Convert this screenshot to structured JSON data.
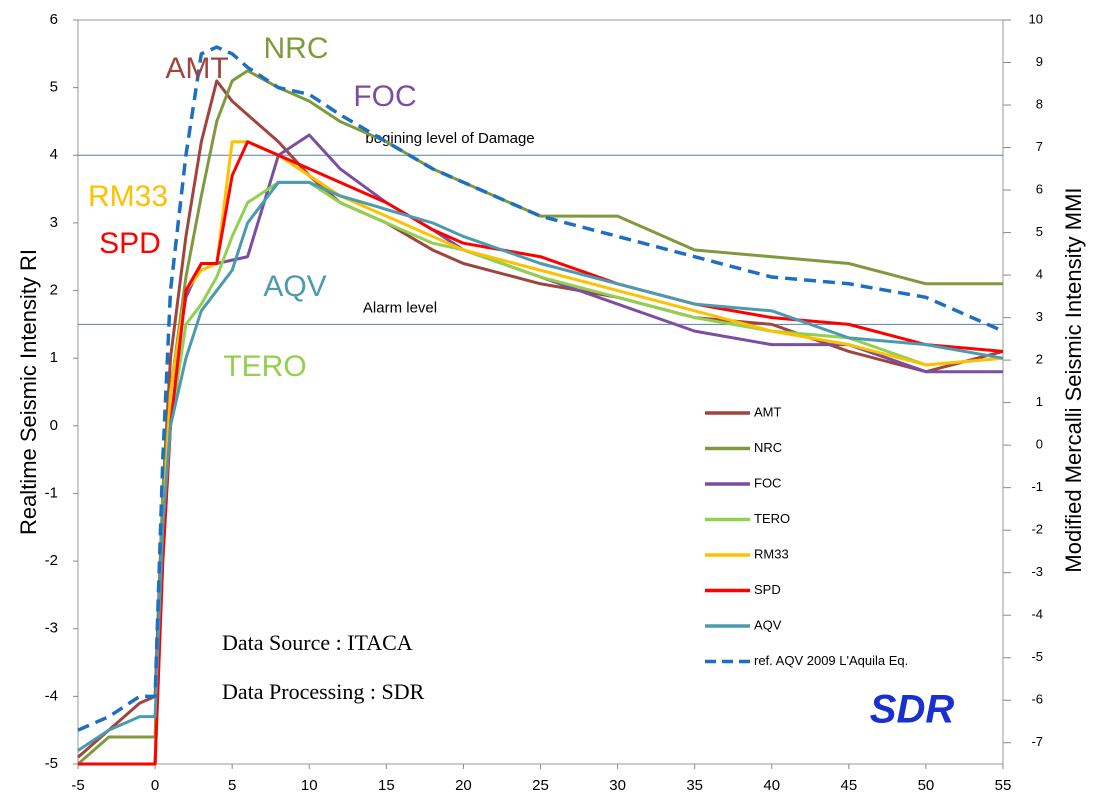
{
  "chart_data": {
    "type": "line",
    "y_label": "Realtime Seismic Intensity RI",
    "y2_label": "Modified Mercalli Seismic Intensity MMI",
    "xlim": [
      -5,
      55
    ],
    "xticks": [
      -5,
      0,
      5,
      10,
      15,
      20,
      25,
      30,
      35,
      40,
      45,
      50,
      55
    ],
    "ylim": [
      -5,
      6
    ],
    "yticks": [
      -5,
      -4,
      -3,
      -2,
      -1,
      0,
      1,
      2,
      3,
      4,
      5,
      6
    ],
    "y2lim": [
      -7.5,
      10
    ],
    "y2ticks": [
      -7,
      -6,
      -5,
      -4,
      -3,
      -2,
      -1,
      0,
      1,
      2,
      3,
      4,
      5,
      6,
      7,
      8,
      9,
      10
    ],
    "hlines": [
      {
        "value": 4,
        "label": "begining level of Damage"
      },
      {
        "value": 1.5,
        "label": "Alarm level"
      }
    ],
    "annotations": [
      "AMT",
      "NRC",
      "FOC",
      "RM33",
      "SPD",
      "AQV",
      "TERO"
    ],
    "notes": [
      "Data Source : ITACA",
      "Data Processing : SDR"
    ],
    "logo": "SDR",
    "x": [
      -5,
      -3,
      -1,
      0,
      0.5,
      1,
      2,
      3,
      4,
      5,
      6,
      8,
      10,
      12,
      15,
      18,
      20,
      25,
      30,
      35,
      40,
      45,
      50,
      55
    ],
    "series": [
      {
        "name": "AMT",
        "color": "#a0453e",
        "values": [
          -4.9,
          -4.5,
          -4.1,
          -4.0,
          -1,
          1.0,
          2.8,
          4.2,
          5.1,
          4.8,
          4.6,
          4.2,
          3.7,
          3.3,
          3.0,
          2.6,
          2.4,
          2.1,
          1.9,
          1.6,
          1.5,
          1.1,
          0.8,
          1.1
        ]
      },
      {
        "name": "NRC",
        "color": "#7f9a3c",
        "values": [
          -5,
          -4.6,
          -4.6,
          -4.6,
          -1,
          0.5,
          2.2,
          3.4,
          4.5,
          5.1,
          5.25,
          5.0,
          4.8,
          4.5,
          4.2,
          3.8,
          3.6,
          3.1,
          3.1,
          2.6,
          2.5,
          2.4,
          2.1,
          2.1
        ]
      },
      {
        "name": "FOC",
        "color": "#7a4ea0",
        "values": [
          -5,
          -5,
          -5,
          -5,
          -1.5,
          0.5,
          1.9,
          2.4,
          2.4,
          2.45,
          2.5,
          4.0,
          4.3,
          3.8,
          3.3,
          2.9,
          2.6,
          2.2,
          1.8,
          1.4,
          1.2,
          1.2,
          0.8,
          0.8
        ]
      },
      {
        "name": "TERO",
        "color": "#92d050",
        "values": [
          -5,
          -5,
          -5,
          -5,
          -2,
          0,
          1.5,
          1.8,
          2.2,
          2.8,
          3.3,
          3.6,
          3.6,
          3.3,
          3.0,
          2.7,
          2.6,
          2.2,
          1.9,
          1.6,
          1.4,
          1.3,
          0.9,
          1.0
        ]
      },
      {
        "name": "RM33",
        "color": "#ffc000",
        "values": [
          -5,
          -5,
          -5,
          -5,
          -1.5,
          0.5,
          2.0,
          2.3,
          2.4,
          4.2,
          4.2,
          4.0,
          3.7,
          3.4,
          3.1,
          2.8,
          2.6,
          2.3,
          2.0,
          1.7,
          1.4,
          1.2,
          0.9,
          1.0
        ]
      },
      {
        "name": "SPD",
        "color": "#ff0000",
        "values": [
          -5,
          -5,
          -5,
          -5,
          -2,
          0,
          2.0,
          2.4,
          2.4,
          3.7,
          4.2,
          4.0,
          3.8,
          3.6,
          3.3,
          2.9,
          2.7,
          2.5,
          2.1,
          1.8,
          1.6,
          1.5,
          1.2,
          1.1
        ]
      },
      {
        "name": "AQV",
        "color": "#4a9bb0",
        "values": [
          -4.8,
          -4.5,
          -4.3,
          -4.3,
          -1.5,
          0,
          1.0,
          1.7,
          2.0,
          2.3,
          3.0,
          3.6,
          3.6,
          3.4,
          3.2,
          3.0,
          2.8,
          2.4,
          2.1,
          1.8,
          1.7,
          1.3,
          1.2,
          1.0
        ]
      },
      {
        "name": "ref. AQV 2009 L'Aquila Eq.",
        "color": "#1f6fc0",
        "dashed": true,
        "values": [
          -4.5,
          -4.3,
          -4.0,
          -4.0,
          -0.5,
          2.0,
          4.0,
          5.5,
          5.6,
          5.5,
          5.3,
          5.0,
          4.9,
          4.6,
          4.2,
          3.8,
          3.6,
          3.1,
          2.8,
          2.5,
          2.2,
          2.1,
          1.9,
          1.4
        ]
      }
    ]
  }
}
